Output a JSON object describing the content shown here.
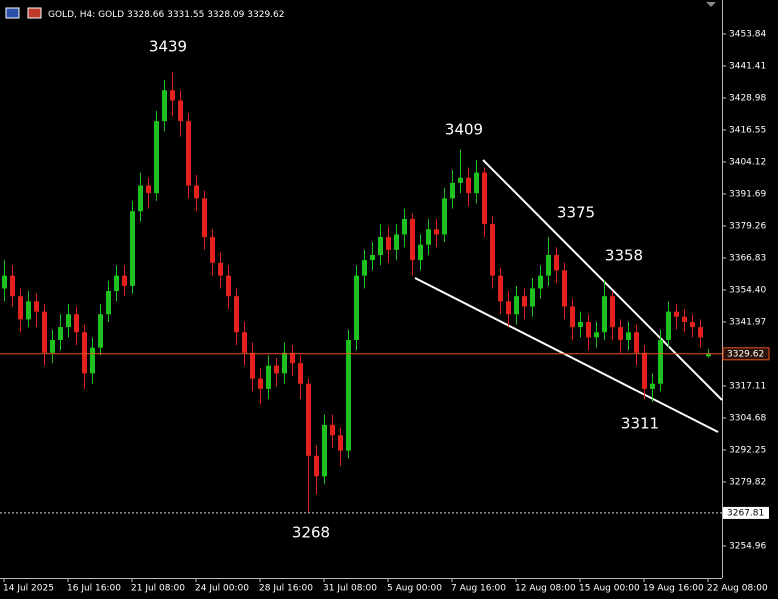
{
  "chart_data": {
    "type": "candlestick",
    "symbol": "GOLD, H4:  GOLD",
    "categories": [
      "14 Jul 2025",
      null,
      null,
      null,
      null,
      null,
      null,
      null,
      "16 Jul 16:00",
      null,
      null,
      null,
      null,
      null,
      null,
      null,
      "21 Jul 08:00",
      null,
      null,
      null,
      null,
      null,
      null,
      null,
      "24 Jul 00:00",
      null,
      null,
      null,
      null,
      null,
      null,
      null,
      "28 Jul 16:00",
      null,
      null,
      null,
      null,
      null,
      null,
      null,
      "31 Jul 08:00",
      null,
      null,
      null,
      null,
      null,
      null,
      null,
      "5 Aug 00:00",
      null,
      null,
      null,
      null,
      null,
      null,
      null,
      "7 Aug 16:00",
      null,
      null,
      null,
      null,
      null,
      null,
      null,
      "12 Aug 08:00",
      null,
      null,
      null,
      null,
      null,
      null,
      null,
      "15 Aug 00:00",
      null,
      null,
      null,
      null,
      null,
      null,
      null,
      "19 Aug 16:00",
      null,
      null,
      null,
      null,
      null,
      null,
      null,
      "22 Aug 08:00"
    ],
    "open": [
      3355,
      3360,
      3352,
      3343,
      3350,
      3346,
      3330,
      3335,
      3340,
      3345,
      3338,
      3322,
      3332,
      3345,
      3354,
      3360,
      3356,
      3385,
      3395,
      3392,
      3420,
      3432,
      3428,
      3420,
      3395,
      3390,
      3375,
      3365,
      3360,
      3352,
      3338,
      3330,
      3320,
      3316,
      3325,
      3322,
      3330,
      3326,
      3318,
      3290,
      3282,
      3302,
      3298,
      3292,
      3335,
      3360,
      3366,
      3368,
      3375,
      3370,
      3376,
      3382,
      3366,
      3372,
      3378,
      3376,
      3390,
      3396,
      3398,
      3392,
      3400,
      3380,
      3360,
      3350,
      3345,
      3352,
      3348,
      3355,
      3360,
      3368,
      3362,
      3348,
      3340,
      3342,
      3336,
      3338,
      3352,
      3340,
      3335,
      3338,
      3330,
      3316,
      3318,
      3335,
      3346,
      3344,
      3342,
      3340,
      3328.66
    ],
    "high": [
      3366,
      3364,
      3355,
      3354,
      3353,
      3349,
      3339,
      3345,
      3349,
      3348,
      3341,
      3336,
      3349,
      3358,
      3364,
      3364,
      3389,
      3400,
      3398,
      3424,
      3436,
      3439,
      3432,
      3423,
      3399,
      3393,
      3378,
      3369,
      3364,
      3355,
      3342,
      3334,
      3324,
      3329,
      3328,
      3334,
      3333,
      3329,
      3320,
      3294,
      3306,
      3306,
      3301,
      3339,
      3364,
      3370,
      3373,
      3380,
      3379,
      3380,
      3386,
      3384,
      3376,
      3382,
      3382,
      3394,
      3401,
      3409,
      3402,
      3405,
      3402,
      3383,
      3363,
      3354,
      3356,
      3355,
      3359,
      3364,
      3375,
      3371,
      3365,
      3351,
      3346,
      3345,
      3342,
      3358,
      3354,
      3343,
      3342,
      3341,
      3333,
      3322,
      3339,
      3350,
      3349,
      3347,
      3345,
      3343,
      3331.55
    ],
    "low": [
      3350,
      3348,
      3338,
      3340,
      3340,
      3325,
      3326,
      3331,
      3336,
      3333,
      3316,
      3318,
      3329,
      3342,
      3350,
      3352,
      3353,
      3381,
      3386,
      3389,
      3416,
      3422,
      3414,
      3390,
      3385,
      3370,
      3360,
      3355,
      3347,
      3333,
      3325,
      3315,
      3310,
      3312,
      3317,
      3318,
      3321,
      3312,
      3268,
      3275,
      3279,
      3293,
      3286,
      3289,
      3331,
      3355,
      3362,
      3364,
      3365,
      3366,
      3371,
      3360,
      3362,
      3368,
      3371,
      3373,
      3386,
      3392,
      3387,
      3388,
      3375,
      3355,
      3345,
      3340,
      3341,
      3343,
      3344,
      3351,
      3356,
      3357,
      3343,
      3335,
      3336,
      3331,
      3332,
      3335,
      3335,
      3330,
      3331,
      3325,
      3312,
      3311,
      3315,
      3332,
      3339,
      3338,
      3336,
      3332,
      3328.09
    ],
    "close": [
      3360,
      3352,
      3343,
      3350,
      3346,
      3330,
      3335,
      3340,
      3345,
      3338,
      3322,
      3332,
      3345,
      3354,
      3360,
      3356,
      3385,
      3395,
      3392,
      3420,
      3432,
      3428,
      3420,
      3395,
      3390,
      3375,
      3365,
      3360,
      3352,
      3338,
      3330,
      3320,
      3316,
      3325,
      3322,
      3330,
      3326,
      3318,
      3290,
      3282,
      3302,
      3298,
      3292,
      3335,
      3360,
      3366,
      3368,
      3375,
      3370,
      3376,
      3382,
      3366,
      3372,
      3378,
      3376,
      3390,
      3396,
      3398,
      3392,
      3400,
      3380,
      3360,
      3350,
      3345,
      3352,
      3348,
      3355,
      3360,
      3368,
      3362,
      3348,
      3340,
      3342,
      3336,
      3338,
      3352,
      3340,
      3335,
      3338,
      3330,
      3316,
      3318,
      3335,
      3346,
      3344,
      3342,
      3340,
      3336,
      3329.62
    ],
    "up_color": "#1fc21f",
    "down_color": "#e3221c",
    "ylim": [
      3242.53,
      3467.05
    ],
    "yticks": [
      3453.84,
      3441.41,
      3428.98,
      3416.55,
      3404.12,
      3391.69,
      3379.26,
      3366.83,
      {
        "value": 3354.4,
        "label": "3354.40"
      },
      3341.97,
      3317.11,
      3304.68,
      3292.25,
      3279.82,
      3254.96
    ],
    "current_price": 3329.62,
    "level": 3267.81,
    "annotations": [
      "3439",
      "3409",
      "3375",
      "3358",
      "3311",
      "3268"
    ]
  }
}
